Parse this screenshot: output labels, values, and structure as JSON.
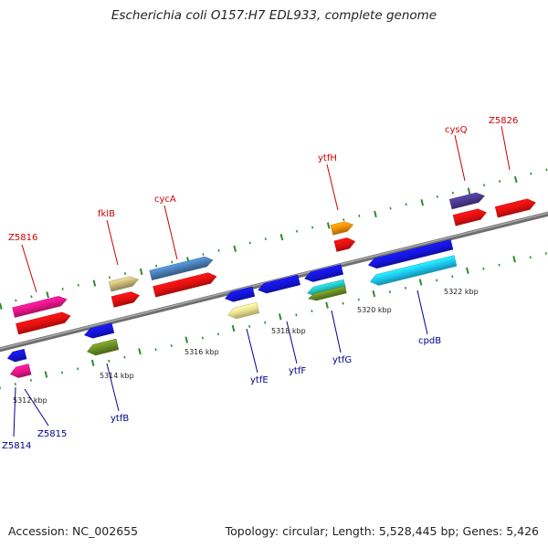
{
  "title": "Escherichia coli O157:H7 EDL933, complete genome",
  "footer": {
    "accession": "Accession: NC_002655",
    "info": "Topology: circular; Length: 5,528,445 bp; Genes: 5,426"
  },
  "colors": {
    "backbone": "#8a8a8a",
    "tick": "#2e8b2e",
    "forward_label": "#cc0000",
    "reverse_label": "#00008b",
    "label_line_forward": "#cc0000",
    "label_line_reverse": "#00008b"
  },
  "kbp_labels": [
    "5312 kbp",
    "5314 kbp",
    "5316 kbp",
    "5318 kbp",
    "5320 kbp",
    "5322 kbp"
  ],
  "genes": [
    {
      "id": "gene-z5816",
      "strand": "forward",
      "color": "#e8168a",
      "row": 1
    },
    {
      "id": "gene-z5816-cds",
      "strand": "forward",
      "color": "#e81010",
      "row": 2
    },
    {
      "id": "gene-fklb",
      "strand": "forward",
      "color": "#c8b878",
      "row": 1
    },
    {
      "id": "gene-fklb-cds",
      "strand": "forward",
      "color": "#e81010",
      "row": 2
    },
    {
      "id": "gene-cyca",
      "strand": "forward",
      "color": "#4a7fb8",
      "row": 1
    },
    {
      "id": "gene-cyca-cds",
      "strand": "forward",
      "color": "#e81010",
      "row": 2
    },
    {
      "id": "gene-ytfh",
      "strand": "forward",
      "color": "#f5900a",
      "row": 1
    },
    {
      "id": "gene-ytfh-cds",
      "strand": "forward",
      "color": "#e81010",
      "row": 2
    },
    {
      "id": "gene-cysq",
      "strand": "forward",
      "color": "#4a3a90",
      "row": 1
    },
    {
      "id": "gene-cysq-cds",
      "strand": "forward",
      "color": "#e81010",
      "row": 2
    },
    {
      "id": "gene-z5826-cds",
      "strand": "forward",
      "color": "#e81010",
      "row": 2
    },
    {
      "id": "gene-z5814",
      "strand": "reverse",
      "color": "#1515e0",
      "row": 1
    },
    {
      "id": "gene-z5815",
      "strand": "reverse",
      "color": "#e8168a",
      "row": 2
    },
    {
      "id": "gene-ytfb",
      "strand": "reverse",
      "color": "#1515e0",
      "row": 1
    },
    {
      "id": "gene-ytfb-2",
      "strand": "reverse",
      "color": "#6b8e23",
      "row": 2
    },
    {
      "id": "gene-ytfe",
      "strand": "reverse",
      "color": "#1515e0",
      "row": 1
    },
    {
      "id": "gene-ytfe-2",
      "strand": "reverse",
      "color": "#ede290",
      "row": 2
    },
    {
      "id": "gene-ytff",
      "strand": "reverse",
      "color": "#1515e0",
      "row": 1
    },
    {
      "id": "gene-ytfg",
      "strand": "reverse",
      "color": "#1515e0",
      "row": 1
    },
    {
      "id": "gene-ytfg-2",
      "strand": "reverse",
      "color": "#20c0c0",
      "row": 2
    },
    {
      "id": "gene-ytfg-3",
      "strand": "reverse",
      "color": "#6b8e23",
      "row": 3
    },
    {
      "id": "gene-cpdb",
      "strand": "reverse",
      "color": "#1515e0",
      "row": 1
    },
    {
      "id": "gene-cpdb-2",
      "strand": "reverse",
      "color": "#1ec8f0",
      "row": 2
    }
  ],
  "labels_forward": [
    "Z5816",
    "fklB",
    "cycA",
    "ytfH",
    "cysQ",
    "Z5826"
  ],
  "labels_reverse": [
    "Z5814",
    "Z5815",
    "ytfB",
    "ytfE",
    "ytfF",
    "ytfG",
    "cpdB"
  ]
}
